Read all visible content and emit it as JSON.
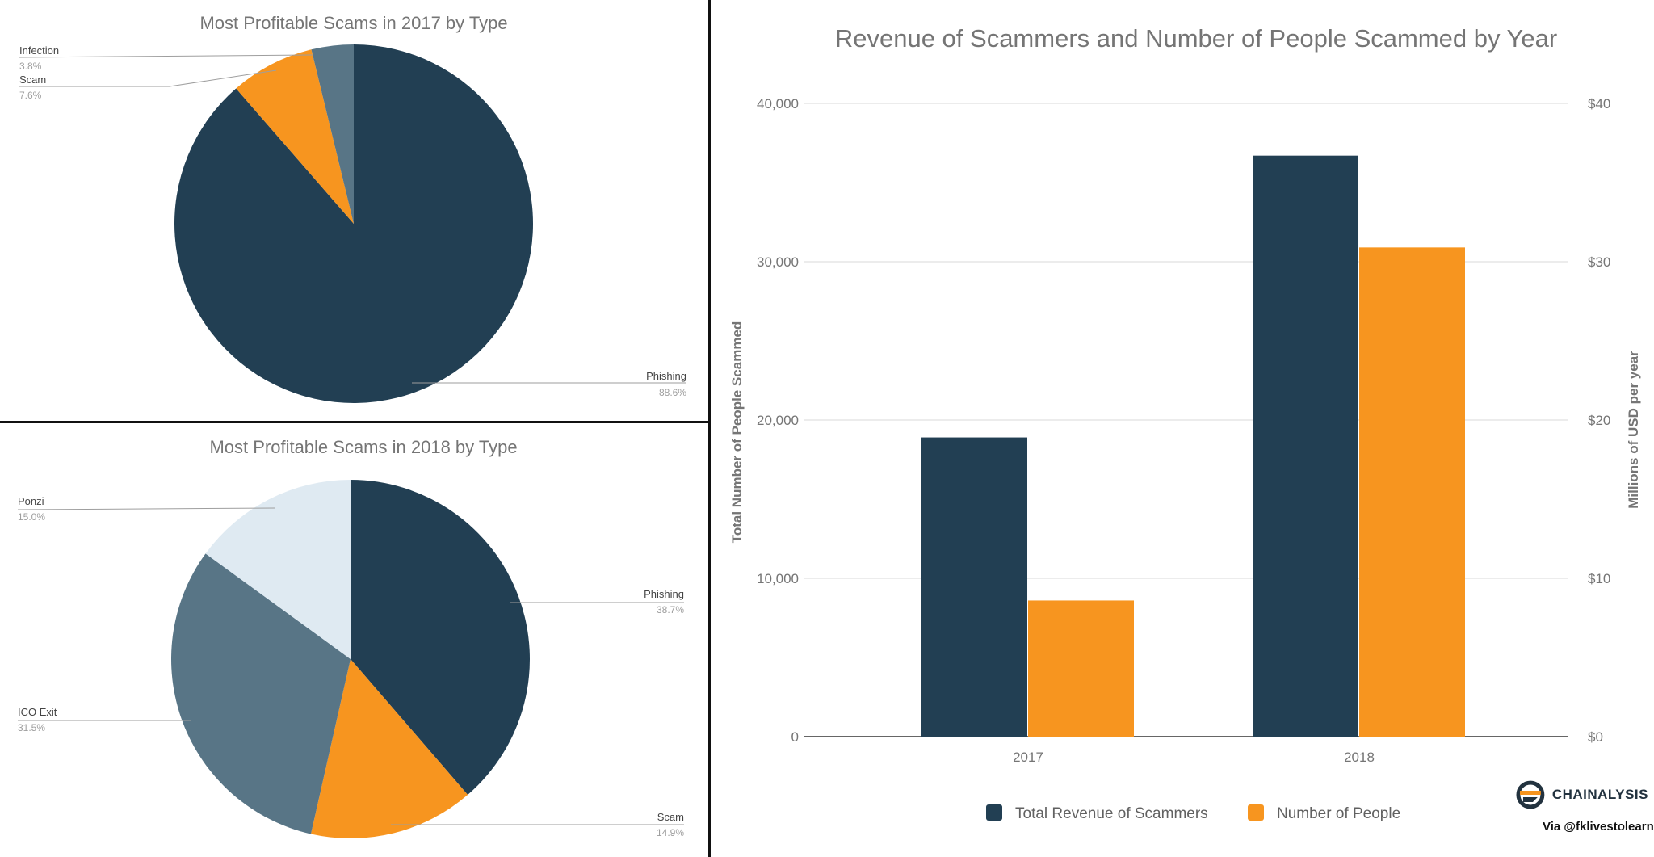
{
  "colors": {
    "navy": "#223f53",
    "orange": "#f7951f",
    "slate": "#587586",
    "pale": "#dfeaf2"
  },
  "chart_data": [
    {
      "type": "pie",
      "title": "Most Profitable Scams in 2017 by Type",
      "slices": [
        {
          "label": "Phishing",
          "value": 88.6,
          "pct": "88.6%",
          "color": "#223f53"
        },
        {
          "label": "Scam",
          "value": 7.6,
          "pct": "7.6%",
          "color": "#f7951f"
        },
        {
          "label": "Infection",
          "value": 3.8,
          "pct": "3.8%",
          "color": "#587586"
        }
      ]
    },
    {
      "type": "pie",
      "title": "Most Profitable Scams in 2018 by Type",
      "slices": [
        {
          "label": "Phishing",
          "value": 38.7,
          "pct": "38.7%",
          "color": "#223f53"
        },
        {
          "label": "Scam",
          "value": 14.9,
          "pct": "14.9%",
          "color": "#f7951f"
        },
        {
          "label": "ICO Exit",
          "value": 31.5,
          "pct": "31.5%",
          "color": "#587586"
        },
        {
          "label": "Ponzi",
          "value": 15.0,
          "pct": "15.0%",
          "color": "#dfeaf2"
        }
      ]
    },
    {
      "type": "bar",
      "title": "Revenue of Scammers and Number of People Scammed by Year",
      "categories": [
        "2017",
        "2018"
      ],
      "series": [
        {
          "name": "Total Revenue of Scammers",
          "axis": "left",
          "values": [
            18900,
            36700
          ],
          "color": "#223f53"
        },
        {
          "name": "Number of People",
          "axis": "right",
          "values": [
            8.6,
            30.9
          ],
          "color": "#f7951f"
        }
      ],
      "ylabel_left": "Total Number of People Scammed",
      "ylabel_right": "Millions of USD per year",
      "ylim_left": [
        0,
        40000
      ],
      "ylim_right": [
        0,
        40
      ],
      "yticks_left": [
        "0",
        "10,000",
        "20,000",
        "30,000",
        "40,000"
      ],
      "yticks_right": [
        "$0",
        "$10",
        "$20",
        "$30",
        "$40"
      ],
      "grid": true,
      "legend": "bottom"
    }
  ],
  "brand": {
    "name": "CHAINALYSIS",
    "credit": "Via @fklivestolearn"
  }
}
